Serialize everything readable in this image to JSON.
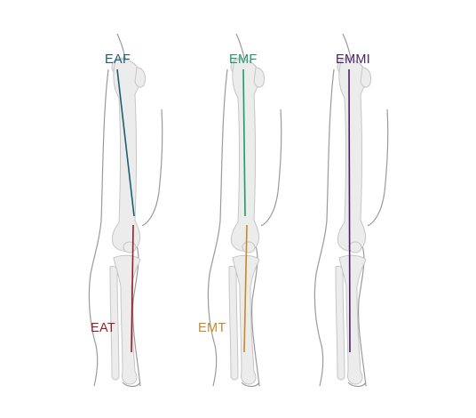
{
  "labels": {
    "eaf": "EAF",
    "eat": "EAT",
    "emf": "EMF",
    "emt": "EMT",
    "emmi": "EMMI"
  },
  "colors": {
    "background": "#ffffff",
    "outline": "#9a9a9a",
    "bone_fill": "#ececec",
    "bone_stroke": "#c6c6c6",
    "eaf": "#1d5e75",
    "eat": "#9b1c24",
    "emf": "#1d9a67",
    "emt": "#c48a2c",
    "emmi": "#4a1f66"
  }
}
